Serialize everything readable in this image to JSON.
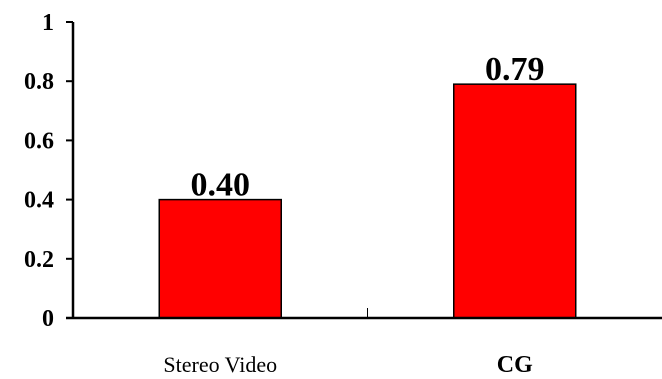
{
  "chart_data": {
    "type": "bar",
    "categories": [
      "Stereo Video",
      "CG"
    ],
    "category_bold": [
      false,
      true
    ],
    "values": [
      0.4,
      0.79
    ],
    "data_labels": [
      "0.40",
      "0.79"
    ],
    "y_ticks": [
      "0",
      "0.2",
      "0.4",
      "0.6",
      "0.8",
      "1"
    ],
    "ylim": [
      0,
      1
    ],
    "title": "",
    "xlabel": "",
    "ylabel": "",
    "grid": false,
    "bar_color": "#ff0000",
    "bar_edge_color": "#000000"
  }
}
